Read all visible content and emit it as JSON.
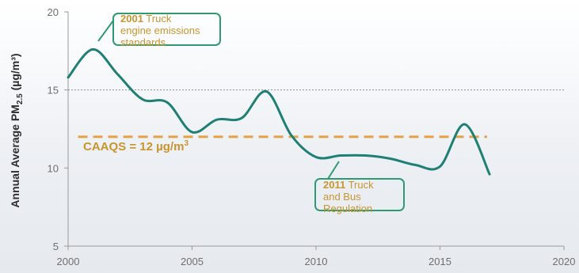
{
  "chart_data": {
    "type": "line",
    "ylabel": "Annual Average PM2.5 (µg/m³)",
    "xlim": [
      2000,
      2020
    ],
    "ylim": [
      5,
      20
    ],
    "x_ticks": [
      "2000",
      "2005",
      "2010",
      "2015",
      "2020"
    ],
    "y_ticks": [
      "5",
      "10",
      "15",
      "20"
    ],
    "series": [
      {
        "x": [
          2000,
          2001,
          2002,
          2003,
          2004,
          2005,
          2006,
          2007,
          2008,
          2009,
          2010,
          2011,
          2012,
          2013,
          2014,
          2015,
          2016,
          2017
        ],
        "y": [
          15.8,
          17.6,
          16.0,
          14.4,
          14.2,
          12.3,
          13.1,
          13.2,
          14.9,
          12.1,
          10.7,
          10.8,
          10.8,
          10.6,
          10.2,
          10.1,
          12.8,
          9.6
        ],
        "color": "#1f7f74"
      }
    ],
    "reference_line": {
      "value": 12,
      "label_main": "CAAQS = 12 µg/m",
      "label_sup": "3",
      "color": "#e3a244"
    },
    "grid_lines_at": [
      15
    ],
    "annotations": [
      {
        "year_bold": "2001",
        "lines": [
          " Truck",
          "engine emissions",
          "standards"
        ],
        "target_x": 2001.0,
        "target_y": 17.8
      },
      {
        "year_bold": "2011",
        "lines": [
          " Truck",
          "and Bus",
          "Regulation"
        ],
        "target_x": 2011.0,
        "target_y": 10.75
      }
    ]
  }
}
